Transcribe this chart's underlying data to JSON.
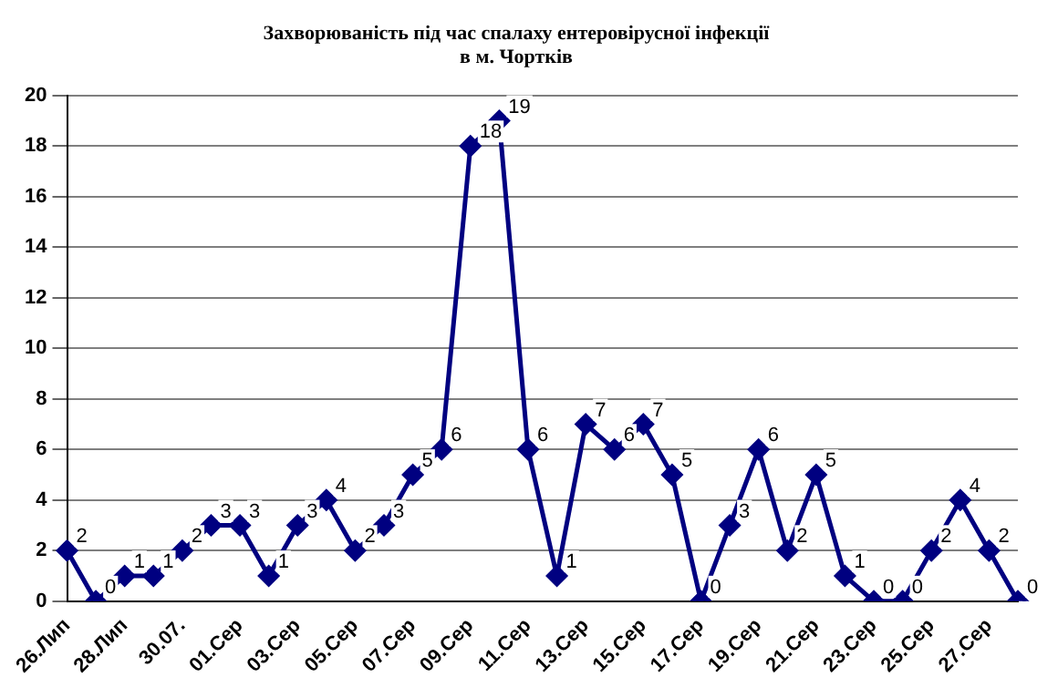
{
  "chart_data": {
    "type": "line",
    "title": [
      "Захворюваність під час спалаху ентеровірусної інфекції",
      "в м. Чортків"
    ],
    "categories": [
      "26.Лип",
      null,
      "28.Лип",
      null,
      "30.07.",
      null,
      "01.Сер",
      null,
      "03.Сер",
      null,
      "05.Сер",
      null,
      "07.Сер",
      null,
      "09.Сер",
      null,
      "11.Сер",
      null,
      "13.Сер",
      null,
      "15.Сер",
      null,
      "17.Сер",
      null,
      "19.Сер",
      null,
      "21.Сер",
      null,
      "23.Сер",
      null,
      "25.Сер",
      null,
      "27.Сер",
      null
    ],
    "values": [
      2,
      0,
      1,
      1,
      2,
      3,
      3,
      1,
      3,
      4,
      2,
      3,
      5,
      6,
      18,
      19,
      6,
      1,
      7,
      6,
      7,
      5,
      0,
      3,
      6,
      2,
      5,
      1,
      0,
      0,
      2,
      4,
      2,
      0
    ],
    "color": "#000080",
    "ylim": [
      0,
      20
    ],
    "yticks": [
      0,
      2,
      4,
      6,
      8,
      10,
      12,
      14,
      16,
      18,
      20
    ],
    "grid": "y",
    "marker": "diamond",
    "line_style": "solid",
    "data_labels": true,
    "legend": false
  }
}
